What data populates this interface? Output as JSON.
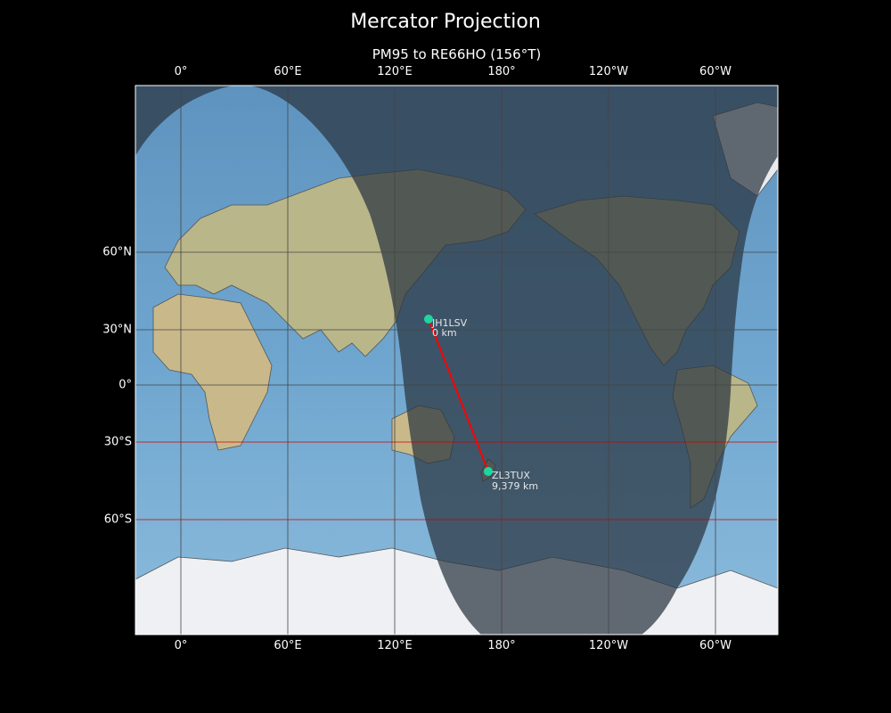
{
  "title": "Mercator Projection",
  "subtitle": "PM95 to RE66HO (156°T)",
  "x_ticks": [
    "0°",
    "60°E",
    "120°E",
    "180°",
    "120°W",
    "60°W"
  ],
  "y_ticks": [
    "60°N",
    "30°N",
    "0°",
    "30°S",
    "60°S"
  ],
  "stations": [
    {
      "call": "JH1LSV",
      "distance": "0 km",
      "lat": 35.7,
      "lon": 139.7
    },
    {
      "call": "ZL3TUX",
      "distance": "9,379 km",
      "lat": -43.5,
      "lon": 172.6
    }
  ],
  "colors": {
    "path": "#ff0000",
    "station": "#1ed6a0",
    "ocean": "#6fa3c8",
    "night_overlay": "#2a3440",
    "highlight_latitudes": "#cc0000"
  },
  "projection": "mercator",
  "features": [
    "day-night terminator shading",
    "great-circle path",
    "graticule"
  ]
}
